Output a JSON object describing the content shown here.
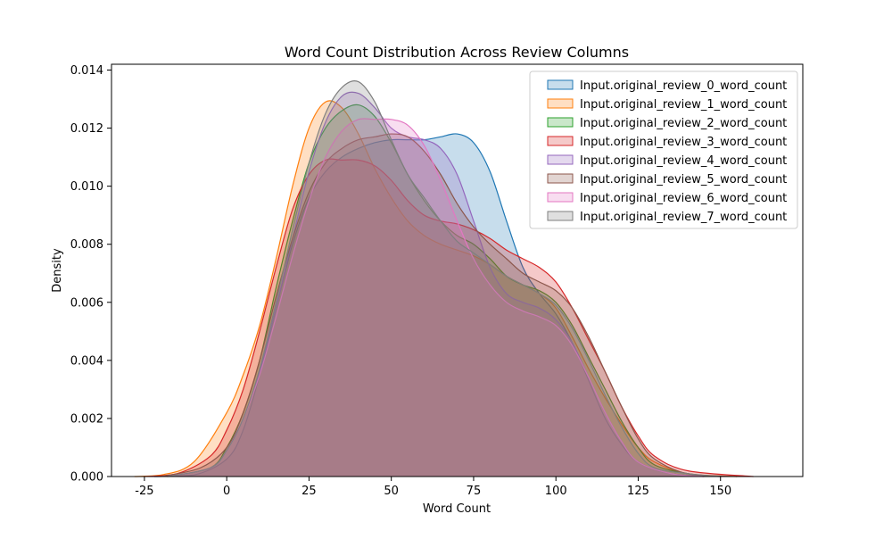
{
  "chart_data": {
    "type": "area",
    "subtype": "kde",
    "title": "Word Count Distribution Across Review Columns",
    "xlabel": "Word Count",
    "ylabel": "Density",
    "xlim": [
      -35,
      175
    ],
    "ylim": [
      0,
      0.0142
    ],
    "xticks": [
      -25,
      0,
      25,
      50,
      75,
      100,
      125,
      150
    ],
    "yticks": [
      0.0,
      0.002,
      0.004,
      0.006,
      0.008,
      0.01,
      0.012,
      0.014
    ],
    "ytick_labels": [
      "0.000",
      "0.002",
      "0.004",
      "0.006",
      "0.008",
      "0.010",
      "0.012",
      "0.014"
    ],
    "grid": false,
    "legend_position": "top-right",
    "series": [
      {
        "name": "Input.original_review_0_word_count",
        "color": "#1f77b4",
        "points": [
          [
            -22,
            0
          ],
          [
            -10,
            5e-05
          ],
          [
            0,
            0.0006
          ],
          [
            5,
            0.0016
          ],
          [
            10,
            0.0035
          ],
          [
            15,
            0.0058
          ],
          [
            20,
            0.008
          ],
          [
            25,
            0.0096
          ],
          [
            30,
            0.0105
          ],
          [
            35,
            0.011
          ],
          [
            40,
            0.0113
          ],
          [
            45,
            0.0115
          ],
          [
            50,
            0.0116
          ],
          [
            55,
            0.0116
          ],
          [
            60,
            0.0116
          ],
          [
            65,
            0.0117
          ],
          [
            70,
            0.0118
          ],
          [
            75,
            0.0115
          ],
          [
            80,
            0.0105
          ],
          [
            85,
            0.0088
          ],
          [
            90,
            0.0072
          ],
          [
            95,
            0.0063
          ],
          [
            100,
            0.0056
          ],
          [
            105,
            0.0046
          ],
          [
            110,
            0.0033
          ],
          [
            115,
            0.002
          ],
          [
            120,
            0.0011
          ],
          [
            125,
            0.0005
          ],
          [
            135,
            0.0001
          ],
          [
            150,
            0
          ]
        ]
      },
      {
        "name": "Input.original_review_1_word_count",
        "color": "#ff7f0e",
        "points": [
          [
            -28,
            0
          ],
          [
            -20,
            5e-05
          ],
          [
            -10,
            0.0005
          ],
          [
            0,
            0.0022
          ],
          [
            5,
            0.0035
          ],
          [
            10,
            0.0052
          ],
          [
            15,
            0.0075
          ],
          [
            20,
            0.01
          ],
          [
            25,
            0.012
          ],
          [
            30,
            0.0129
          ],
          [
            35,
            0.0127
          ],
          [
            40,
            0.0118
          ],
          [
            45,
            0.0106
          ],
          [
            50,
            0.0096
          ],
          [
            55,
            0.0088
          ],
          [
            60,
            0.0083
          ],
          [
            65,
            0.008
          ],
          [
            70,
            0.0078
          ],
          [
            75,
            0.0076
          ],
          [
            80,
            0.0073
          ],
          [
            85,
            0.0069
          ],
          [
            90,
            0.0066
          ],
          [
            95,
            0.0063
          ],
          [
            100,
            0.0058
          ],
          [
            105,
            0.0048
          ],
          [
            110,
            0.0037
          ],
          [
            115,
            0.0027
          ],
          [
            120,
            0.0018
          ],
          [
            125,
            0.001
          ],
          [
            130,
            0.0005
          ],
          [
            140,
            0.0001
          ],
          [
            155,
            0
          ]
        ]
      },
      {
        "name": "Input.original_review_2_word_count",
        "color": "#2ca02c",
        "points": [
          [
            -18,
            0
          ],
          [
            -5,
            0.0003
          ],
          [
            0,
            0.001
          ],
          [
            5,
            0.0022
          ],
          [
            10,
            0.004
          ],
          [
            15,
            0.0065
          ],
          [
            20,
            0.0088
          ],
          [
            25,
            0.0108
          ],
          [
            30,
            0.012
          ],
          [
            35,
            0.0126
          ],
          [
            40,
            0.0128
          ],
          [
            45,
            0.0124
          ],
          [
            50,
            0.0115
          ],
          [
            55,
            0.0104
          ],
          [
            60,
            0.0095
          ],
          [
            65,
            0.0088
          ],
          [
            70,
            0.0083
          ],
          [
            75,
            0.008
          ],
          [
            80,
            0.0075
          ],
          [
            85,
            0.0069
          ],
          [
            90,
            0.0066
          ],
          [
            95,
            0.0064
          ],
          [
            100,
            0.006
          ],
          [
            105,
            0.0052
          ],
          [
            110,
            0.0041
          ],
          [
            115,
            0.003
          ],
          [
            120,
            0.0019
          ],
          [
            125,
            0.001
          ],
          [
            130,
            0.0004
          ],
          [
            140,
            0.0001
          ],
          [
            150,
            0
          ]
        ]
      },
      {
        "name": "Input.original_review_3_word_count",
        "color": "#d62728",
        "points": [
          [
            -25,
            0
          ],
          [
            -15,
            0.0001
          ],
          [
            -5,
            0.0007
          ],
          [
            0,
            0.0016
          ],
          [
            5,
            0.003
          ],
          [
            10,
            0.005
          ],
          [
            15,
            0.0072
          ],
          [
            20,
            0.0092
          ],
          [
            25,
            0.0104
          ],
          [
            30,
            0.0109
          ],
          [
            35,
            0.0109
          ],
          [
            40,
            0.0109
          ],
          [
            45,
            0.0107
          ],
          [
            50,
            0.0102
          ],
          [
            55,
            0.0095
          ],
          [
            60,
            0.009
          ],
          [
            65,
            0.0088
          ],
          [
            70,
            0.0087
          ],
          [
            75,
            0.0085
          ],
          [
            80,
            0.0082
          ],
          [
            85,
            0.0078
          ],
          [
            90,
            0.0075
          ],
          [
            95,
            0.0072
          ],
          [
            100,
            0.0067
          ],
          [
            105,
            0.0058
          ],
          [
            110,
            0.0047
          ],
          [
            115,
            0.0036
          ],
          [
            120,
            0.0024
          ],
          [
            125,
            0.0014
          ],
          [
            130,
            0.0007
          ],
          [
            140,
            0.0002
          ],
          [
            160,
            0
          ]
        ]
      },
      {
        "name": "Input.original_review_4_word_count",
        "color": "#9467bd",
        "points": [
          [
            -18,
            0
          ],
          [
            -5,
            0.0003
          ],
          [
            0,
            0.0009
          ],
          [
            5,
            0.002
          ],
          [
            10,
            0.0036
          ],
          [
            15,
            0.0058
          ],
          [
            20,
            0.0082
          ],
          [
            25,
            0.0105
          ],
          [
            30,
            0.0122
          ],
          [
            35,
            0.0131
          ],
          [
            40,
            0.0132
          ],
          [
            45,
            0.0127
          ],
          [
            50,
            0.012
          ],
          [
            55,
            0.0117
          ],
          [
            60,
            0.0116
          ],
          [
            65,
            0.0113
          ],
          [
            70,
            0.0104
          ],
          [
            75,
            0.0088
          ],
          [
            80,
            0.0072
          ],
          [
            85,
            0.0063
          ],
          [
            90,
            0.006
          ],
          [
            95,
            0.0058
          ],
          [
            100,
            0.0054
          ],
          [
            105,
            0.0046
          ],
          [
            110,
            0.0034
          ],
          [
            115,
            0.0022
          ],
          [
            120,
            0.0012
          ],
          [
            125,
            0.0005
          ],
          [
            135,
            0.0001
          ],
          [
            145,
            0
          ]
        ]
      },
      {
        "name": "Input.original_review_5_word_count",
        "color": "#8c564b",
        "points": [
          [
            -20,
            0
          ],
          [
            -8,
            0.0003
          ],
          [
            0,
            0.001
          ],
          [
            5,
            0.0022
          ],
          [
            10,
            0.004
          ],
          [
            15,
            0.0062
          ],
          [
            20,
            0.0082
          ],
          [
            25,
            0.0098
          ],
          [
            30,
            0.0108
          ],
          [
            35,
            0.0113
          ],
          [
            40,
            0.0116
          ],
          [
            45,
            0.0117
          ],
          [
            50,
            0.0118
          ],
          [
            55,
            0.0117
          ],
          [
            60,
            0.0112
          ],
          [
            65,
            0.0104
          ],
          [
            70,
            0.0094
          ],
          [
            75,
            0.0086
          ],
          [
            80,
            0.008
          ],
          [
            85,
            0.0075
          ],
          [
            90,
            0.007
          ],
          [
            95,
            0.0067
          ],
          [
            100,
            0.0064
          ],
          [
            105,
            0.0058
          ],
          [
            110,
            0.0048
          ],
          [
            115,
            0.0036
          ],
          [
            120,
            0.0024
          ],
          [
            125,
            0.0013
          ],
          [
            130,
            0.0006
          ],
          [
            140,
            0.0001
          ],
          [
            155,
            0
          ]
        ]
      },
      {
        "name": "Input.original_review_6_word_count",
        "color": "#e377c2",
        "points": [
          [
            -18,
            0
          ],
          [
            -5,
            0.0003
          ],
          [
            0,
            0.0009
          ],
          [
            5,
            0.002
          ],
          [
            10,
            0.0035
          ],
          [
            15,
            0.0055
          ],
          [
            20,
            0.0076
          ],
          [
            25,
            0.0095
          ],
          [
            30,
            0.011
          ],
          [
            35,
            0.0119
          ],
          [
            40,
            0.0123
          ],
          [
            45,
            0.0123
          ],
          [
            50,
            0.0123
          ],
          [
            55,
            0.0121
          ],
          [
            60,
            0.0114
          ],
          [
            65,
            0.0102
          ],
          [
            70,
            0.0088
          ],
          [
            75,
            0.0075
          ],
          [
            80,
            0.0066
          ],
          [
            85,
            0.006
          ],
          [
            90,
            0.0057
          ],
          [
            95,
            0.0055
          ],
          [
            100,
            0.0052
          ],
          [
            105,
            0.0045
          ],
          [
            110,
            0.0034
          ],
          [
            115,
            0.0022
          ],
          [
            120,
            0.0012
          ],
          [
            125,
            0.0005
          ],
          [
            135,
            0.0001
          ],
          [
            145,
            0
          ]
        ]
      },
      {
        "name": "Input.original_review_7_word_count",
        "color": "#7f7f7f",
        "points": [
          [
            -18,
            0
          ],
          [
            -5,
            0.0003
          ],
          [
            0,
            0.0009
          ],
          [
            5,
            0.002
          ],
          [
            10,
            0.0037
          ],
          [
            15,
            0.006
          ],
          [
            20,
            0.0085
          ],
          [
            25,
            0.0108
          ],
          [
            30,
            0.0125
          ],
          [
            35,
            0.0134
          ],
          [
            40,
            0.0136
          ],
          [
            45,
            0.0129
          ],
          [
            50,
            0.0116
          ],
          [
            55,
            0.0104
          ],
          [
            60,
            0.0096
          ],
          [
            65,
            0.0088
          ],
          [
            70,
            0.0081
          ],
          [
            75,
            0.0077
          ],
          [
            80,
            0.0073
          ],
          [
            85,
            0.0069
          ],
          [
            90,
            0.0066
          ],
          [
            95,
            0.0063
          ],
          [
            100,
            0.0059
          ],
          [
            105,
            0.0051
          ],
          [
            110,
            0.004
          ],
          [
            115,
            0.0028
          ],
          [
            120,
            0.0017
          ],
          [
            125,
            0.0008
          ],
          [
            130,
            0.0003
          ],
          [
            140,
            0.0001
          ],
          [
            150,
            0
          ]
        ]
      }
    ]
  }
}
